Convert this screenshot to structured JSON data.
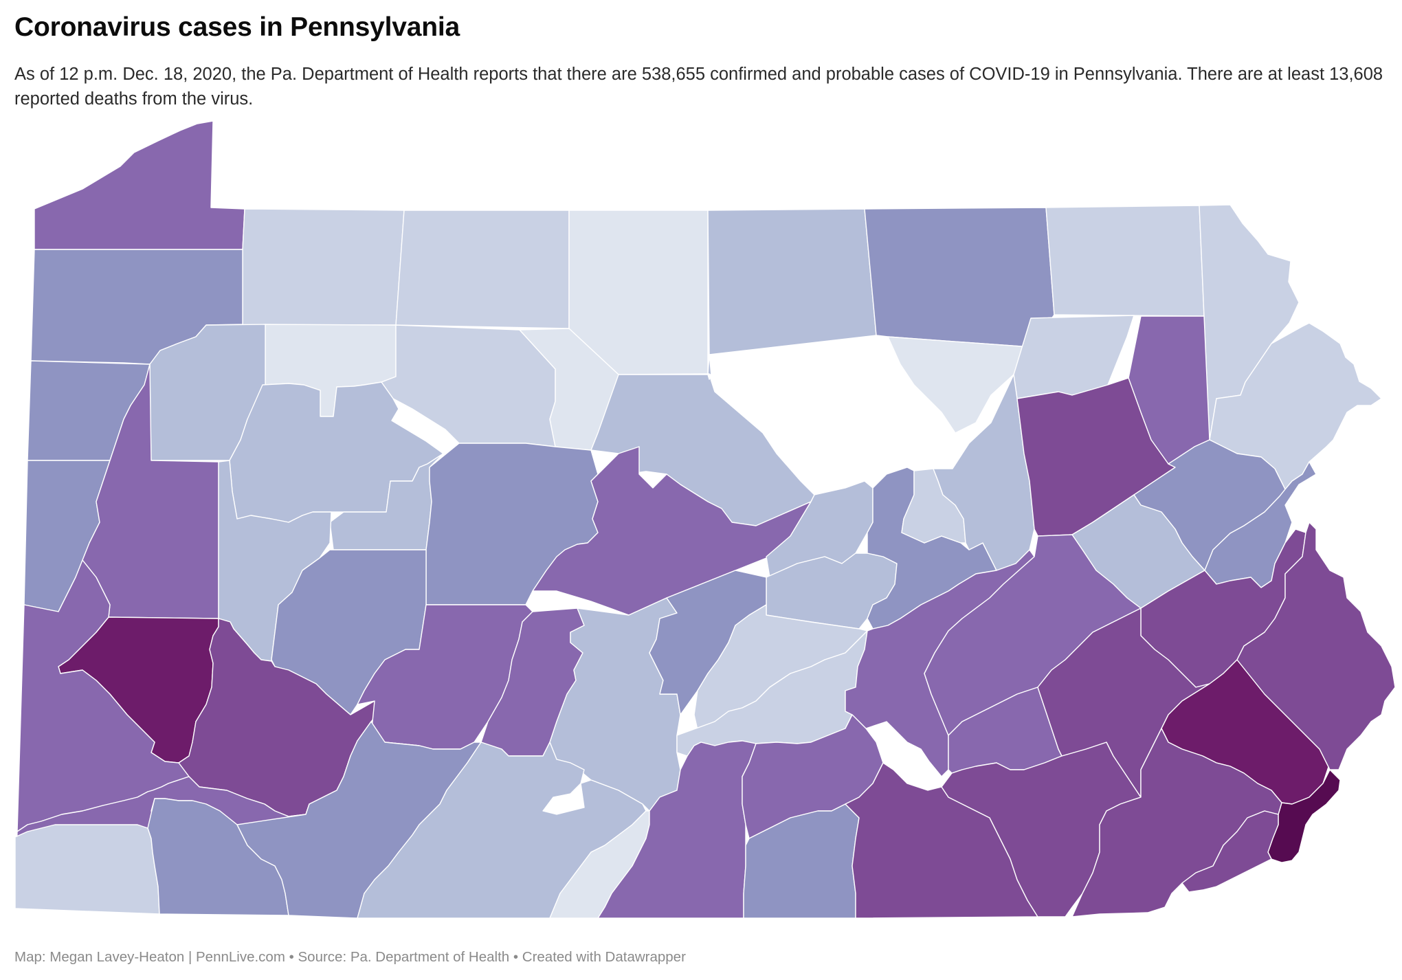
{
  "title": "Coronavirus cases in Pennsylvania",
  "subtitle": "As of 12 p.m. Dec. 18, 2020, the Pa. Department of Health reports that there are 538,655 confirmed and probable cases of COVID-19 in Pennsylvania. There are at least 13,608 reported deaths from the virus.",
  "footer": {
    "map_credit": "Map: Megan Lavey-Heaton | PennLive.com",
    "source": "Source: Pa. Department of Health",
    "created_with": "Created with Datawrapper",
    "separator_pipe": "•"
  },
  "colors": {
    "lightest": "#dfe5ef",
    "light": "#c9d1e4",
    "light_mid": "#b4bed9",
    "mid": "#8f94c2",
    "mid_dark": "#8868ae",
    "dark": "#7e4b95",
    "darker": "#6d1c6a",
    "darkest": "#560b51"
  },
  "map_regions": [
    {
      "id": "erie",
      "shade": "mid_dark"
    },
    {
      "id": "crawford",
      "shade": "mid"
    },
    {
      "id": "warren",
      "shade": "light"
    },
    {
      "id": "mckean",
      "shade": "light"
    },
    {
      "id": "potter",
      "shade": "lightest"
    },
    {
      "id": "tioga",
      "shade": "light_mid"
    },
    {
      "id": "bradford",
      "shade": "mid"
    },
    {
      "id": "susquehanna",
      "shade": "light"
    },
    {
      "id": "wayne",
      "shade": "light"
    },
    {
      "id": "mercer",
      "shade": "mid"
    },
    {
      "id": "venango",
      "shade": "light_mid"
    },
    {
      "id": "forest",
      "shade": "lightest"
    },
    {
      "id": "elk",
      "shade": "light"
    },
    {
      "id": "cameron",
      "shade": "lightest"
    },
    {
      "id": "lycoming",
      "shade": "light_mid"
    },
    {
      "id": "sullivan",
      "shade": "lightest"
    },
    {
      "id": "wyoming",
      "shade": "light"
    },
    {
      "id": "lackawanna",
      "shade": "mid_dark"
    },
    {
      "id": "pike",
      "shade": "light"
    },
    {
      "id": "lawrence",
      "shade": "mid"
    },
    {
      "id": "butler",
      "shade": "mid_dark"
    },
    {
      "id": "clarion",
      "shade": "light_mid"
    },
    {
      "id": "jefferson",
      "shade": "light_mid"
    },
    {
      "id": "clearfield",
      "shade": "mid"
    },
    {
      "id": "centre",
      "shade": "mid_dark"
    },
    {
      "id": "clinton",
      "shade": "light_mid"
    },
    {
      "id": "union",
      "shade": "light_mid"
    },
    {
      "id": "snyder",
      "shade": "light_mid"
    },
    {
      "id": "northumberland",
      "shade": "mid"
    },
    {
      "id": "montour",
      "shade": "light"
    },
    {
      "id": "columbia",
      "shade": "light_mid"
    },
    {
      "id": "luzerne",
      "shade": "dark"
    },
    {
      "id": "monroe",
      "shade": "mid"
    },
    {
      "id": "beaver",
      "shade": "mid_dark"
    },
    {
      "id": "armstrong",
      "shade": "light_mid"
    },
    {
      "id": "indiana",
      "shade": "mid"
    },
    {
      "id": "allegheny",
      "shade": "darker"
    },
    {
      "id": "westmoreland",
      "shade": "dark"
    },
    {
      "id": "cambria",
      "shade": "mid_dark"
    },
    {
      "id": "blair",
      "shade": "mid_dark"
    },
    {
      "id": "huntingdon",
      "shade": "light_mid"
    },
    {
      "id": "mifflin",
      "shade": "mid"
    },
    {
      "id": "juniata",
      "shade": "light"
    },
    {
      "id": "perry",
      "shade": "light"
    },
    {
      "id": "dauphin",
      "shade": "mid_dark"
    },
    {
      "id": "schuylkill",
      "shade": "mid_dark"
    },
    {
      "id": "carbon",
      "shade": "light_mid"
    },
    {
      "id": "northampton",
      "shade": "mid"
    },
    {
      "id": "lehigh",
      "shade": "dark"
    },
    {
      "id": "berks",
      "shade": "dark"
    },
    {
      "id": "bucks",
      "shade": "dark"
    },
    {
      "id": "lebanon",
      "shade": "mid_dark"
    },
    {
      "id": "lancaster",
      "shade": "dark"
    },
    {
      "id": "montgomery",
      "shade": "darker"
    },
    {
      "id": "philadelphia",
      "shade": "darkest"
    },
    {
      "id": "chester",
      "shade": "dark"
    },
    {
      "id": "delaware",
      "shade": "dark"
    },
    {
      "id": "washington",
      "shade": "mid_dark"
    },
    {
      "id": "greene",
      "shade": "light"
    },
    {
      "id": "fayette",
      "shade": "mid"
    },
    {
      "id": "somerset",
      "shade": "mid"
    },
    {
      "id": "bedford",
      "shade": "light_mid"
    },
    {
      "id": "fulton",
      "shade": "lightest"
    },
    {
      "id": "franklin",
      "shade": "mid_dark"
    },
    {
      "id": "cumberland",
      "shade": "mid_dark"
    },
    {
      "id": "adams",
      "shade": "mid"
    },
    {
      "id": "york",
      "shade": "dark"
    }
  ]
}
